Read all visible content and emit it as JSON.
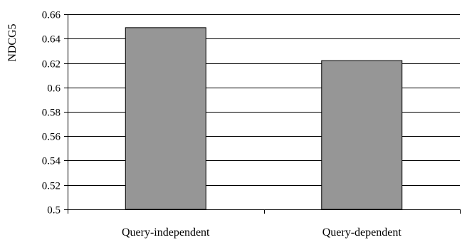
{
  "chart_data": {
    "type": "bar",
    "title": "",
    "xlabel": "",
    "ylabel": "NDCG5",
    "categories": [
      "Query-independent",
      "Query-dependent"
    ],
    "values": [
      0.649,
      0.622
    ],
    "ylim": [
      0.5,
      0.66
    ],
    "yticks": [
      0.5,
      0.52,
      0.54,
      0.56,
      0.58,
      0.6,
      0.62,
      0.64,
      0.66
    ],
    "ytick_labels": [
      "0.5",
      "0.52",
      "0.54",
      "0.56",
      "0.58",
      "0.6",
      "0.62",
      "0.64",
      "0.66"
    ],
    "grid": true,
    "legend": "none",
    "bar_color": "#969696",
    "bar_edge_color": "#000000"
  }
}
